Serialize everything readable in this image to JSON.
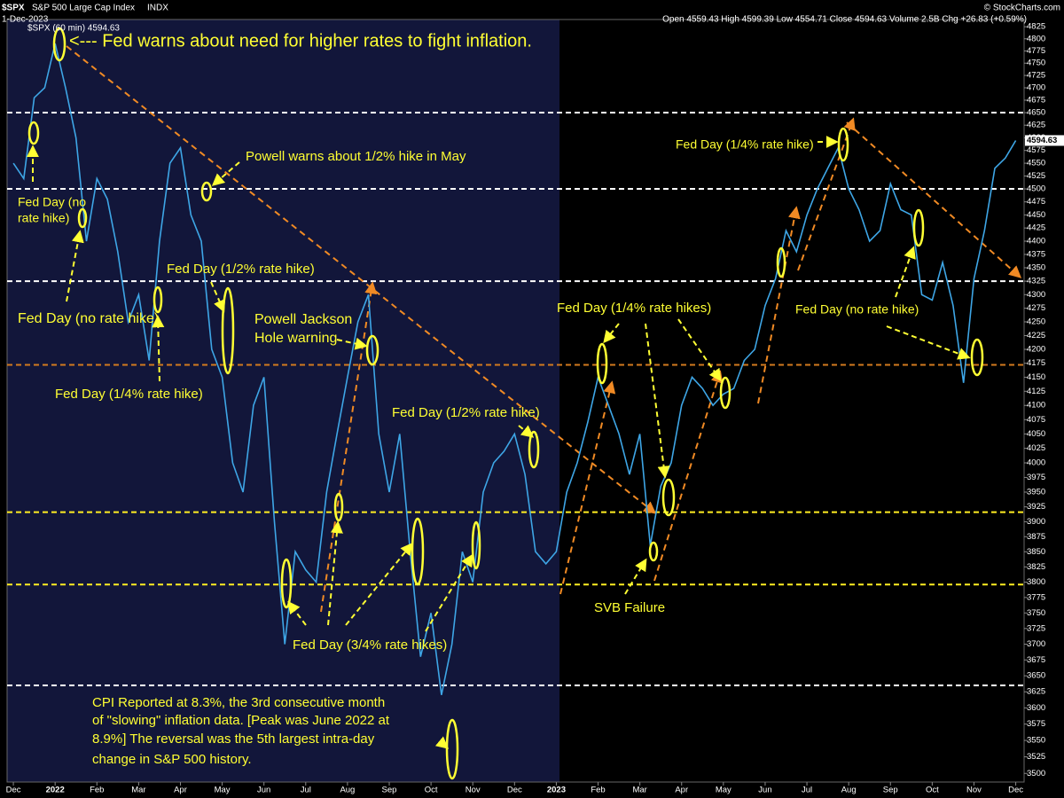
{
  "chart_data": {
    "type": "line",
    "symbol": "$SPX",
    "title": "S&P 500 Large Cap Index",
    "exchange": "INDX",
    "date": "1-Dec-2023",
    "quote": "Open 4559.43  High 4599.39  Low 4554.71  Close 4594.63  Volume 2.5B  Chg +26.83 (+0.59%)",
    "credit": "© StockCharts.com",
    "log_scale": true,
    "xlim": [
      -0.15,
      24.2
    ],
    "ylim": [
      3487,
      4840
    ],
    "xticks": [
      {
        "value": 0,
        "label": "Dec"
      },
      {
        "value": 1,
        "label": "2022"
      },
      {
        "value": 2,
        "label": "Feb"
      },
      {
        "value": 3,
        "label": "Mar"
      },
      {
        "value": 4,
        "label": "Apr"
      },
      {
        "value": 5,
        "label": "May"
      },
      {
        "value": 6,
        "label": "Jun"
      },
      {
        "value": 7,
        "label": "Jul"
      },
      {
        "value": 8,
        "label": "Aug"
      },
      {
        "value": 9,
        "label": "Sep"
      },
      {
        "value": 10,
        "label": "Oct"
      },
      {
        "value": 11,
        "label": "Nov"
      },
      {
        "value": 12,
        "label": "Dec"
      },
      {
        "value": 13,
        "label": "2023"
      },
      {
        "value": 14,
        "label": "Feb"
      },
      {
        "value": 15,
        "label": "Mar"
      },
      {
        "value": 16,
        "label": "Apr"
      },
      {
        "value": 17,
        "label": "May"
      },
      {
        "value": 18,
        "label": "Jun"
      },
      {
        "value": 19,
        "label": "Jul"
      },
      {
        "value": 20,
        "label": "Aug"
      },
      {
        "value": 21,
        "label": "Sep"
      },
      {
        "value": 22,
        "label": "Oct"
      },
      {
        "value": 23,
        "label": "Nov"
      },
      {
        "value": 24,
        "label": "Dec"
      }
    ],
    "yticks": [
      3500,
      3525,
      3550,
      3575,
      3600,
      3625,
      3650,
      3675,
      3700,
      3725,
      3750,
      3775,
      3800,
      3825,
      3850,
      3875,
      3900,
      3925,
      3950,
      3975,
      4000,
      4025,
      4050,
      4075,
      4100,
      4125,
      4150,
      4175,
      4200,
      4225,
      4250,
      4275,
      4300,
      4325,
      4350,
      4375,
      4400,
      4425,
      4450,
      4475,
      4500,
      4525,
      4550,
      4575,
      4600,
      4625,
      4650,
      4675,
      4700,
      4725,
      4750,
      4775,
      4800,
      4825
    ],
    "levels": [
      {
        "value": 4650,
        "color": "#ffffff"
      },
      {
        "value": 4500,
        "color": "#ffffff"
      },
      {
        "value": 4325,
        "color": "#ffffff"
      },
      {
        "value": 4172,
        "color": "#d27a1e"
      },
      {
        "value": 3916,
        "color": "#ffee22"
      },
      {
        "value": 3796,
        "color": "#ffee22"
      },
      {
        "value": 3635,
        "color": "#ffffff"
      }
    ],
    "series": [
      {
        "name": "$SPX (60 min) 4594.63",
        "color": "#3ea6e6",
        "x": [
          0,
          0.25,
          0.5,
          0.75,
          1,
          1.25,
          1.5,
          1.75,
          2,
          2.25,
          2.5,
          2.75,
          3,
          3.25,
          3.5,
          3.75,
          4,
          4.25,
          4.5,
          4.75,
          5,
          5.25,
          5.5,
          5.75,
          6,
          6.25,
          6.5,
          6.75,
          7,
          7.25,
          7.5,
          7.75,
          8,
          8.25,
          8.5,
          8.75,
          9,
          9.25,
          9.5,
          9.75,
          10,
          10.25,
          10.5,
          10.75,
          11,
          11.25,
          11.5,
          11.75,
          12,
          12.25,
          12.5,
          12.75,
          13,
          13.25,
          13.5,
          13.75,
          14,
          14.25,
          14.5,
          14.75,
          15,
          15.25,
          15.5,
          15.75,
          16,
          16.25,
          16.5,
          16.75,
          17,
          17.25,
          17.5,
          17.75,
          18,
          18.25,
          18.5,
          18.75,
          19,
          19.25,
          19.5,
          19.75,
          20,
          20.25,
          20.5,
          20.75,
          21,
          21.25,
          21.5,
          21.75,
          22,
          22.25,
          22.5,
          22.75,
          23,
          23.25,
          23.5,
          23.75,
          24
        ],
        "values": [
          4550,
          4520,
          4680,
          4700,
          4790,
          4700,
          4600,
          4400,
          4520,
          4480,
          4380,
          4250,
          4300,
          4180,
          4400,
          4550,
          4580,
          4450,
          4400,
          4200,
          4150,
          4000,
          3950,
          4100,
          4150,
          3900,
          3700,
          3850,
          3820,
          3800,
          3950,
          4050,
          4150,
          4250,
          4300,
          4050,
          3950,
          4050,
          3850,
          3680,
          3750,
          3620,
          3700,
          3850,
          3800,
          3950,
          4000,
          4020,
          4050,
          3980,
          3850,
          3830,
          3850,
          3950,
          4000,
          4070,
          4150,
          4100,
          4050,
          3980,
          4050,
          3860,
          3960,
          4000,
          4100,
          4150,
          4130,
          4100,
          4120,
          4130,
          4180,
          4200,
          4280,
          4330,
          4420,
          4380,
          4450,
          4500,
          4540,
          4580,
          4500,
          4460,
          4400,
          4420,
          4510,
          4460,
          4450,
          4300,
          4290,
          4360,
          4280,
          4140,
          4330,
          4420,
          4540,
          4560,
          4594.63
        ]
      }
    ],
    "annotations": [
      "<--- Fed warns about need for higher rates to fight inflation.",
      "Powell warns about 1/2% hike in May",
      "Fed Day (no",
      "rate hike)",
      "Fed Day (1/2% rate hike)",
      "Fed Day (no rate hike)",
      "Fed Day (1/4% rate hike)",
      "Powell Jackson",
      "Hole warning",
      "Fed Day (1/2% rate hike)",
      "Fed Day (1/4% rate hikes)",
      "Fed Day (1/4% rate hike)",
      "Fed Day (no rate hike)",
      "SVB Failure",
      "Fed Day (3/4% rate hikes)",
      "CPI Reported at 8.3%, the 3rd consecutive month",
      "of \"slowing\" inflation data. [Peak was June 2022 at",
      "8.9%] The reversal was the 5th largest intra-day",
      "change in S&P 500 history."
    ]
  }
}
